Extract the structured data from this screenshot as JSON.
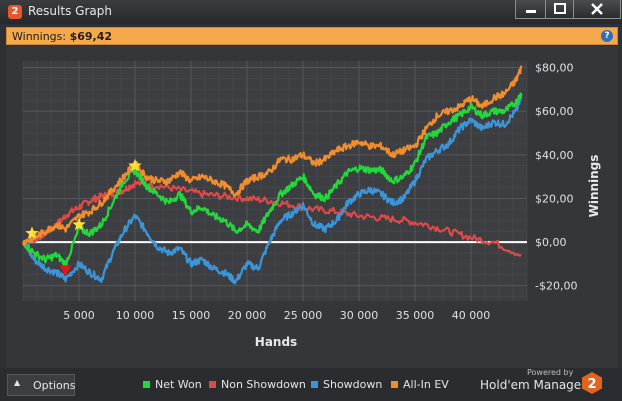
{
  "window": {
    "title": "Results Graph",
    "app_icon_glyph": "2",
    "buttons": [
      "minimize-icon",
      "maximize-icon",
      "close-icon"
    ]
  },
  "winnings_bar": {
    "label": "Winnings:",
    "value": "$69,42",
    "help_glyph": "?"
  },
  "options_label": "Options",
  "legend": [
    {
      "name": "Net Won",
      "color": "#22d83a"
    },
    {
      "name": "Non Showdown",
      "color": "#dd4a48"
    },
    {
      "name": "Showdown",
      "color": "#3b95d8"
    },
    {
      "name": "All-In EV",
      "color": "#f08d2e"
    }
  ],
  "branding": {
    "powered_by": "Powered by",
    "product": "Hold'em Manager",
    "logo_glyph": "2"
  },
  "chart_data": {
    "type": "line",
    "xlabel": "Hands",
    "ylabel": "Winnings",
    "xlim": [
      0,
      45000
    ],
    "ylim": [
      -27,
      83
    ],
    "x_ticks": [
      {
        "value": 5000,
        "label": "5 000"
      },
      {
        "value": 10000,
        "label": "10 000"
      },
      {
        "value": 15000,
        "label": "15 000"
      },
      {
        "value": 20000,
        "label": "20 000"
      },
      {
        "value": 25000,
        "label": "25 000"
      },
      {
        "value": 30000,
        "label": "30 000"
      },
      {
        "value": 35000,
        "label": "35 000"
      },
      {
        "value": 40000,
        "label": "40 000"
      }
    ],
    "y_ticks": [
      {
        "value": 80,
        "label": "$80,00"
      },
      {
        "value": 60,
        "label": "$60,00"
      },
      {
        "value": 40,
        "label": "$40,00"
      },
      {
        "value": 20,
        "label": "$20,00"
      },
      {
        "value": 0,
        "label": "$0,00"
      },
      {
        "value": -20,
        "label": "-$20,00"
      }
    ],
    "grid": true,
    "zero_line": true,
    "series": [
      {
        "name": "Non Showdown",
        "color": "#dd4a48",
        "x": [
          0,
          1000,
          2000,
          3000,
          4000,
          5000,
          6000,
          7000,
          8000,
          9000,
          10000,
          12000,
          14000,
          16000,
          18000,
          20000,
          22000,
          24000,
          26000,
          28000,
          30000,
          32000,
          34000,
          36000,
          38000,
          40000,
          42000,
          44500
        ],
        "y": [
          0,
          1,
          4,
          8,
          13,
          16,
          19,
          21,
          22,
          24,
          27,
          26,
          24,
          22,
          21,
          20,
          19,
          17,
          15,
          14,
          12,
          11,
          10,
          8,
          5,
          2,
          0,
          -6
        ]
      },
      {
        "name": "Showdown",
        "color": "#3b95d8",
        "x": [
          0,
          1000,
          2000,
          3000,
          3800,
          5000,
          6000,
          7000,
          8000,
          9000,
          10000,
          11000,
          12000,
          13000,
          14000,
          15000,
          16000,
          17000,
          18000,
          19000,
          20000,
          21000,
          22000,
          23000,
          24000,
          25000,
          26000,
          27000,
          28000,
          29000,
          30000,
          31000,
          32000,
          33000,
          34000,
          35000,
          36000,
          37000,
          38000,
          39000,
          40000,
          41000,
          42000,
          43000,
          44000,
          44500
        ],
        "y": [
          0,
          -8,
          -12,
          -14,
          -17,
          -10,
          -14,
          -17,
          -5,
          5,
          12,
          5,
          -2,
          -5,
          -3,
          -10,
          -8,
          -12,
          -14,
          -18,
          -10,
          -12,
          0,
          10,
          13,
          17,
          8,
          6,
          10,
          18,
          22,
          24,
          22,
          18,
          20,
          28,
          38,
          42,
          45,
          52,
          56,
          52,
          55,
          54,
          60,
          66
        ]
      },
      {
        "name": "Net Won",
        "color": "#22d83a",
        "x": [
          0,
          1000,
          2000,
          3000,
          3800,
          5000,
          6000,
          7000,
          8000,
          9000,
          10000,
          11000,
          12000,
          13000,
          14000,
          15000,
          16000,
          17000,
          18000,
          19000,
          20000,
          21000,
          22000,
          23000,
          24000,
          25000,
          26000,
          27000,
          28000,
          29000,
          30000,
          31000,
          32000,
          33000,
          34000,
          35000,
          36000,
          37000,
          38000,
          39000,
          40000,
          41000,
          42000,
          43000,
          44000,
          44500
        ],
        "y": [
          0,
          -5,
          -8,
          -6,
          -10,
          6,
          4,
          8,
          18,
          28,
          33,
          26,
          22,
          18,
          22,
          14,
          16,
          12,
          10,
          5,
          8,
          5,
          14,
          22,
          26,
          30,
          22,
          20,
          26,
          32,
          34,
          33,
          33,
          28,
          30,
          36,
          48,
          50,
          55,
          58,
          62,
          58,
          60,
          60,
          64,
          68
        ]
      },
      {
        "name": "All-In EV",
        "color": "#f08d2e",
        "x": [
          0,
          1000,
          2000,
          3000,
          3800,
          5000,
          6000,
          7000,
          8000,
          9000,
          10000,
          11000,
          12000,
          13000,
          14000,
          15000,
          16000,
          17000,
          18000,
          19000,
          20000,
          21000,
          22000,
          23000,
          24000,
          25000,
          26000,
          27000,
          28000,
          29000,
          30000,
          31000,
          32000,
          33000,
          34000,
          35000,
          36000,
          37000,
          38000,
          39000,
          40000,
          41000,
          42000,
          43000,
          44000,
          44500
        ],
        "y": [
          0,
          2,
          5,
          8,
          6,
          12,
          14,
          18,
          24,
          30,
          36,
          30,
          28,
          28,
          32,
          28,
          30,
          28,
          26,
          22,
          28,
          30,
          32,
          38,
          38,
          40,
          36,
          38,
          42,
          44,
          46,
          44,
          44,
          40,
          42,
          44,
          52,
          58,
          60,
          62,
          66,
          62,
          66,
          68,
          74,
          80
        ]
      }
    ],
    "markers": [
      {
        "shape": "star",
        "color": "#ffe135",
        "x": 800,
        "y": 4
      },
      {
        "shape": "star",
        "color": "#ffe135",
        "x": 5000,
        "y": 8
      },
      {
        "shape": "star",
        "color": "#ffe135",
        "x": 10000,
        "y": 35
      },
      {
        "shape": "triangle-down",
        "color": "#e0161b",
        "x": 3800,
        "y": -13
      }
    ]
  }
}
